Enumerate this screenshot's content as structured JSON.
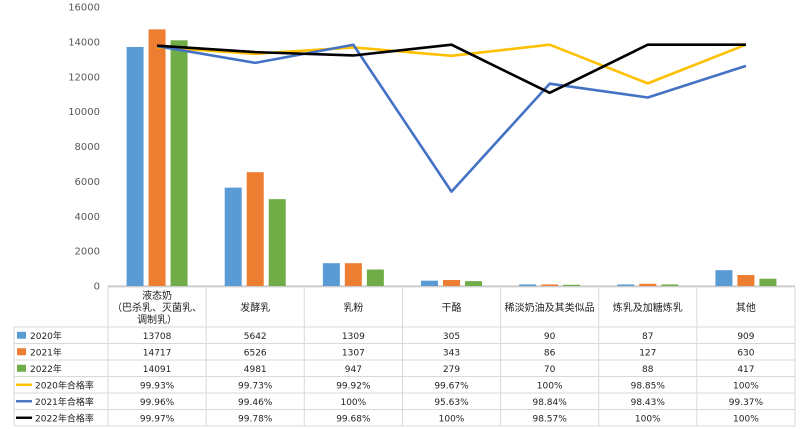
{
  "chart_data": {
    "type": "bar",
    "categories": [
      [
        "液态奶",
        "（巴杀乳、灭菌乳、",
        "调制乳）"
      ],
      [
        "发酵乳"
      ],
      [
        "乳粉"
      ],
      [
        "干酪"
      ],
      [
        "稀淡奶油及其类似品"
      ],
      [
        "炼乳及加糖炼乳"
      ],
      [
        "其他"
      ]
    ],
    "ylim": [
      0,
      16000
    ],
    "yticks": [
      0,
      2000,
      4000,
      6000,
      8000,
      10000,
      12000,
      14000,
      16000
    ],
    "grid": false,
    "bar_series": [
      {
        "name": "2020年",
        "color": "#5b9bd5",
        "values": [
          13708,
          5642,
          1309,
          305,
          90,
          87,
          909
        ]
      },
      {
        "name": "2021年",
        "color": "#ed7d31",
        "values": [
          14717,
          6526,
          1307,
          343,
          86,
          127,
          630
        ]
      },
      {
        "name": "2022年",
        "color": "#70ad47",
        "values": [
          14091,
          4981,
          947,
          279,
          70,
          88,
          417
        ]
      }
    ],
    "line_series": [
      {
        "name": "2020年合格率",
        "color": "#ffc000",
        "values": [
          99.93,
          99.73,
          99.92,
          99.67,
          100,
          98.85,
          100
        ],
        "labels": [
          "99.93%",
          "99.73%",
          "99.92%",
          "99.67%",
          "100%",
          "98.85%",
          "100%"
        ]
      },
      {
        "name": "2021年合格率",
        "color": "#4472c4",
        "values": [
          99.96,
          99.46,
          100,
          95.63,
          98.84,
          98.43,
          99.37
        ],
        "labels": [
          "99.96%",
          "99.46%",
          "100%",
          "95.63%",
          "98.84%",
          "98.43%",
          "99.37%"
        ]
      },
      {
        "name": "2022年合格率",
        "color": "#000000",
        "values": [
          99.97,
          99.78,
          99.68,
          100,
          98.57,
          100,
          100
        ],
        "labels": [
          "99.97%",
          "99.78%",
          "99.68%",
          "100%",
          "98.57%",
          "100%",
          "100%"
        ]
      }
    ],
    "line_scale_note": "pass-rate lines drawn on an unlabeled secondary axis"
  }
}
